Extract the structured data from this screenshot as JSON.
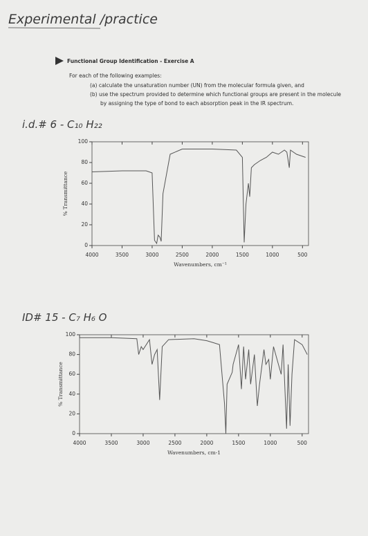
{
  "header": {
    "title": "Experimental /practice"
  },
  "exercise": {
    "title": "Functional Group Identification - Exercise A",
    "intro": "For each of the following examples:",
    "items": [
      "(a) calculate the unsaturation number (UN) from the molecular formula given, and",
      "(b) use the spectrum provided to determine which functional groups are present in the molecule",
      "by assigning the type of bond to each absorption peak in the IR spectrum."
    ]
  },
  "examples": [
    {
      "label": "i.d.# 6 - C₁₀ H₂₂"
    },
    {
      "label": "ID# 15 - C₇ H₆ O"
    }
  ],
  "chart_data": [
    {
      "type": "line",
      "color": "#555555",
      "x": [
        4000,
        3500,
        3100,
        3000,
        2960,
        2925,
        2900,
        2870,
        2850,
        2820,
        2700,
        2500,
        2000,
        1600,
        1500,
        1470,
        1440,
        1400,
        1378,
        1350,
        1300,
        1200,
        1100,
        1000,
        900,
        800,
        760,
        720,
        700,
        600,
        450
      ],
      "values": [
        71,
        72,
        72,
        70,
        5,
        2,
        10,
        8,
        4,
        50,
        88,
        93,
        93,
        92,
        85,
        3,
        40,
        60,
        47,
        75,
        78,
        82,
        85,
        90,
        88,
        92,
        90,
        75,
        92,
        88,
        85
      ],
      "xlim": [
        4000,
        400
      ],
      "ylim": [
        0,
        100
      ],
      "xticks": [
        4000,
        3500,
        3000,
        2500,
        2000,
        1500,
        1000,
        500
      ],
      "yticks": [
        0,
        20,
        40,
        60,
        80,
        100
      ],
      "x_label": "Wavenumbers, cm⁻¹",
      "y_label": "% Transmittance"
    },
    {
      "type": "line",
      "color": "#555555",
      "x": [
        4000,
        3500,
        3100,
        3070,
        3030,
        3000,
        2900,
        2860,
        2820,
        2780,
        2740,
        2700,
        2600,
        2200,
        2000,
        1900,
        1800,
        1720,
        1700,
        1680,
        1600,
        1585,
        1500,
        1455,
        1420,
        1390,
        1340,
        1310,
        1250,
        1205,
        1170,
        1100,
        1070,
        1025,
        1000,
        950,
        830,
        800,
        745,
        720,
        690,
        660,
        620,
        500,
        420
      ],
      "values": [
        97,
        97,
        96,
        80,
        88,
        85,
        95,
        70,
        80,
        85,
        34,
        88,
        95,
        96,
        94,
        92,
        90,
        30,
        0,
        50,
        62,
        70,
        90,
        45,
        88,
        55,
        85,
        50,
        80,
        28,
        50,
        85,
        70,
        75,
        55,
        88,
        60,
        90,
        5,
        70,
        8,
        60,
        95,
        90,
        80
      ],
      "xlim": [
        4000,
        400
      ],
      "ylim": [
        0,
        100
      ],
      "xticks": [
        4000,
        3500,
        3000,
        2500,
        2000,
        1500,
        1000,
        500
      ],
      "yticks": [
        0,
        20,
        40,
        60,
        80,
        100
      ],
      "x_label": "Wavenumbers, cm-1",
      "y_label": "% Transmittance"
    }
  ]
}
